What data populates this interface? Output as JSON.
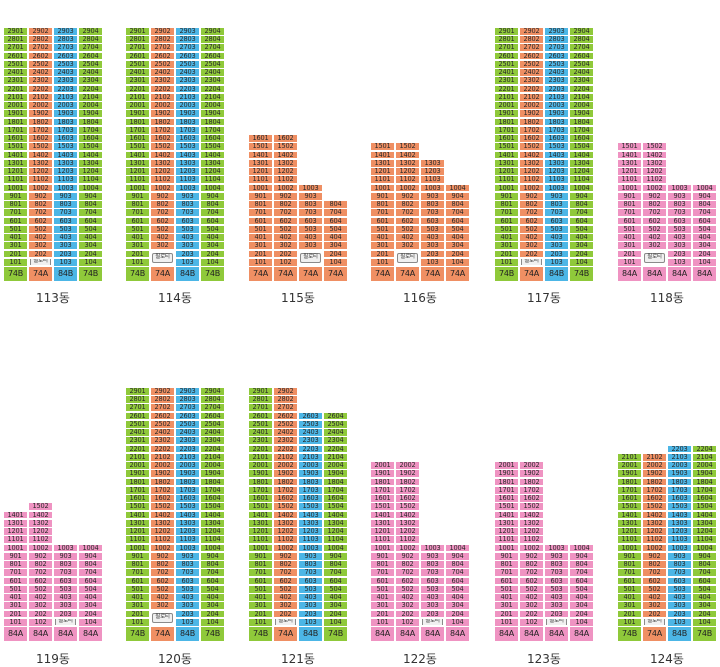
{
  "colors": {
    "74B": "#8fc93a",
    "74A": "#ef8f63",
    "84B": "#4cb6e6",
    "84A": "#ef93c2",
    "piloti": "#ffffff"
  },
  "piloti_label": "필로티",
  "buildings": [
    {
      "name": "113동",
      "types": [
        "74B",
        "74A",
        "84B",
        "74B"
      ],
      "top": [
        29,
        29,
        29,
        29
      ],
      "piloti": {
        "2": 1
      }
    },
    {
      "name": "114동",
      "types": [
        "74B",
        "74A",
        "84B",
        "74B"
      ],
      "top": [
        29,
        29,
        29,
        29
      ],
      "piloti": {
        "2": 2
      }
    },
    {
      "name": "115동",
      "types": [
        "74A",
        "74A",
        "74A",
        "74A"
      ],
      "top": [
        16,
        16,
        10,
        8
      ],
      "piloti": {
        "3": 2
      }
    },
    {
      "name": "116동",
      "types": [
        "74A",
        "74A",
        "74A",
        "74A"
      ],
      "top": [
        15,
        15,
        13,
        10
      ],
      "piloti": {
        "2": 2
      }
    },
    {
      "name": "117동",
      "types": [
        "74B",
        "74A",
        "84B",
        "74B"
      ],
      "top": [
        29,
        29,
        29,
        29
      ],
      "piloti": {
        "2": 1
      }
    },
    {
      "name": "118동",
      "types": [
        "84A",
        "84A",
        "84A",
        "84A"
      ],
      "top": [
        15,
        15,
        10,
        10
      ],
      "piloti": {
        "2": 2
      }
    },
    {
      "name": "119동",
      "types": [
        "84A",
        "84A",
        "84A",
        "84A"
      ],
      "top": [
        14,
        15,
        10,
        10
      ],
      "piloti": {
        "3": 1
      }
    },
    {
      "name": "120동",
      "types": [
        "74B",
        "74A",
        "84B",
        "74B"
      ],
      "top": [
        29,
        29,
        29,
        29
      ],
      "piloti": {
        "2": 2
      }
    },
    {
      "name": "121동",
      "types": [
        "74B",
        "74A",
        "84B",
        "74B"
      ],
      "top": [
        29,
        29,
        26,
        26
      ],
      "piloti": {
        "2": 1
      }
    },
    {
      "name": "122동",
      "types": [
        "84A",
        "84A",
        "84A",
        "84A"
      ],
      "top": [
        20,
        20,
        10,
        10
      ],
      "piloti": {
        "3": 1
      }
    },
    {
      "name": "123동",
      "types": [
        "84A",
        "84A",
        "84A",
        "84A"
      ],
      "top": [
        20,
        20,
        10,
        10
      ],
      "piloti": {
        "3": 1
      }
    },
    {
      "name": "124동",
      "types": [
        "74B",
        "74A",
        "84B",
        "74B"
      ],
      "top": [
        21,
        21,
        22,
        22
      ],
      "piloti": {
        "2": 1
      }
    }
  ]
}
